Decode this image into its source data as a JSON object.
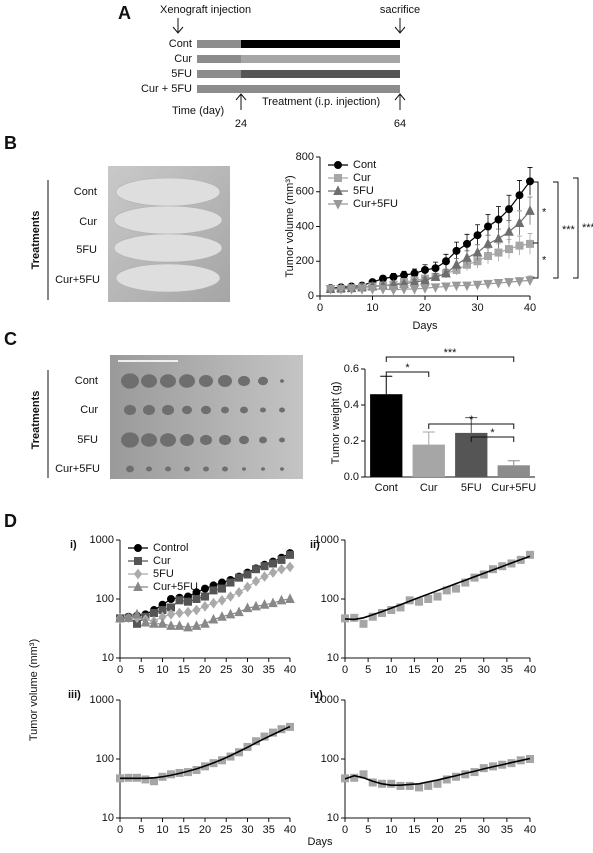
{
  "panel_labels": [
    "A",
    "B",
    "C",
    "D"
  ],
  "timeline": {
    "start_event": "Xenograft injection",
    "end_event": "sacrifice",
    "pre_color": "#8c8c8c",
    "rows": [
      {
        "label": "Cont",
        "color": "#000000"
      },
      {
        "label": "Cur",
        "color": "#a6a6a6"
      },
      {
        "label": "5FU",
        "color": "#555555"
      },
      {
        "label": "Cur + 5FU",
        "color": "#8c8c8c"
      }
    ],
    "time_label": "Time (day)",
    "treatment_label": "Treatment (i.p. injection)",
    "start_day": 24,
    "end_day": 64
  },
  "photos": [
    {
      "heading": "Treatments",
      "rows": [
        "Cont",
        "Cur",
        "5FU",
        "Cur+5FU"
      ]
    },
    {
      "heading": "Treatments",
      "rows": [
        "Cont",
        "Cur",
        "5FU",
        "Cur+5FU"
      ]
    }
  ],
  "panel_d": {
    "ylabel": "Tumor volume (mm³)",
    "xlabel": "Days"
  },
  "chart_data": [
    {
      "type": "line",
      "x": [
        2,
        4,
        6,
        8,
        10,
        12,
        14,
        16,
        18,
        20,
        22,
        24,
        26,
        28,
        30,
        32,
        34,
        36,
        38,
        40
      ],
      "series": [
        {
          "name": "Cont",
          "color": "#000000",
          "marker": "circle",
          "values": [
            45,
            50,
            55,
            60,
            80,
            100,
            110,
            120,
            130,
            150,
            160,
            200,
            260,
            300,
            350,
            400,
            440,
            500,
            580,
            660
          ],
          "errors": [
            5,
            5,
            6,
            8,
            10,
            15,
            20,
            22,
            25,
            30,
            35,
            40,
            50,
            55,
            60,
            70,
            75,
            80,
            85,
            80
          ]
        },
        {
          "name": "Cur",
          "color": "#a6a6a6",
          "marker": "square",
          "values": [
            40,
            40,
            45,
            50,
            55,
            60,
            65,
            80,
            90,
            100,
            110,
            130,
            150,
            180,
            200,
            230,
            250,
            270,
            290,
            300
          ],
          "errors": [
            5,
            5,
            5,
            6,
            8,
            10,
            10,
            12,
            15,
            18,
            20,
            25,
            30,
            35,
            40,
            45,
            50,
            55,
            55,
            60
          ]
        },
        {
          "name": "5FU",
          "color": "#6e6e6e",
          "marker": "triangle",
          "values": [
            40,
            45,
            45,
            50,
            55,
            60,
            65,
            70,
            80,
            90,
            110,
            130,
            180,
            220,
            250,
            300,
            330,
            370,
            420,
            490
          ],
          "errors": [
            5,
            5,
            5,
            6,
            8,
            10,
            10,
            12,
            15,
            18,
            20,
            25,
            35,
            40,
            45,
            50,
            55,
            65,
            70,
            80
          ]
        },
        {
          "name": "Cur+5FU",
          "color": "#999999",
          "marker": "triangle-down",
          "values": [
            40,
            40,
            40,
            40,
            40,
            40,
            35,
            40,
            40,
            45,
            50,
            55,
            60,
            60,
            65,
            70,
            75,
            80,
            85,
            90
          ],
          "errors": [
            4,
            4,
            4,
            4,
            5,
            5,
            5,
            6,
            7,
            8,
            10,
            10,
            12,
            12,
            14,
            15,
            18,
            20,
            20,
            25
          ]
        }
      ],
      "xlim": [
        0,
        40
      ],
      "xticks": [
        0,
        10,
        20,
        30,
        40
      ],
      "ylim": [
        0,
        800
      ],
      "yticks": [
        0,
        200,
        400,
        600,
        800
      ],
      "xlabel": "Days",
      "ylabel": "Tumor volume (mm³)",
      "legend": "upper left",
      "annotations": [
        "*",
        "*",
        "***",
        "***"
      ]
    },
    {
      "type": "bar",
      "categories": [
        "Cont",
        "Cur",
        "5FU",
        "Cur+5FU"
      ],
      "values": [
        0.46,
        0.18,
        0.245,
        0.065
      ],
      "errors": [
        0.1,
        0.07,
        0.085,
        0.025
      ],
      "colors": [
        "#000000",
        "#a6a6a6",
        "#555555",
        "#8c8c8c"
      ],
      "ylim": [
        0,
        0.6
      ],
      "yticks": [
        {
          "value": 0,
          "label": "0.0"
        },
        0.2,
        0.4,
        0.6
      ],
      "ylabel": "Tumor weight (g)",
      "annotations": [
        "*",
        "***",
        "*",
        "*"
      ]
    },
    {
      "type": "line",
      "panel": "i)",
      "log_y": true,
      "x": [
        0,
        2,
        4,
        6,
        8,
        10,
        12,
        14,
        16,
        18,
        20,
        22,
        24,
        26,
        28,
        30,
        32,
        34,
        36,
        38,
        40
      ],
      "series": [
        {
          "name": "Control",
          "color": "#000000",
          "marker": "circle",
          "values": [
            47,
            50,
            52,
            55,
            65,
            80,
            100,
            105,
            110,
            130,
            150,
            170,
            190,
            210,
            240,
            280,
            330,
            380,
            430,
            500,
            600
          ]
        },
        {
          "name": "Cur",
          "color": "#555555",
          "marker": "square",
          "values": [
            47,
            48,
            38,
            50,
            58,
            65,
            72,
            95,
            90,
            100,
            110,
            140,
            150,
            190,
            230,
            260,
            320,
            360,
            400,
            460,
            560
          ]
        },
        {
          "name": "5FU",
          "color": "#aaaaaa",
          "marker": "diamond",
          "values": [
            47,
            48,
            48,
            45,
            42,
            50,
            55,
            58,
            60,
            65,
            75,
            85,
            95,
            110,
            130,
            160,
            200,
            240,
            280,
            320,
            350
          ]
        },
        {
          "name": "Cur+5FU",
          "color": "#888888",
          "marker": "triangle",
          "values": [
            47,
            48,
            55,
            40,
            38,
            38,
            35,
            35,
            33,
            35,
            38,
            45,
            50,
            55,
            60,
            70,
            75,
            80,
            85,
            95,
            100
          ]
        }
      ],
      "xlim": [
        0,
        40
      ],
      "xticks": [
        0,
        5,
        10,
        15,
        20,
        25,
        30,
        35,
        40
      ],
      "ylim": [
        10,
        1000
      ],
      "yticks": [
        10,
        100,
        1000
      ],
      "legend": "upper left"
    },
    {
      "type": "line",
      "panel": "ii)",
      "log_y": true,
      "x": [
        0,
        2,
        4,
        6,
        8,
        10,
        12,
        14,
        16,
        18,
        20,
        22,
        24,
        26,
        28,
        30,
        32,
        34,
        36,
        38,
        40
      ],
      "series": [
        {
          "color": "#a6a6a6",
          "marker": "square",
          "line": false,
          "values": [
            47,
            48,
            38,
            50,
            58,
            65,
            72,
            95,
            90,
            100,
            110,
            140,
            150,
            190,
            230,
            260,
            320,
            360,
            400,
            460,
            560
          ]
        },
        {
          "color": "#000000",
          "marker": "none",
          "values": [
            46,
            45,
            48,
            54,
            61,
            70,
            80,
            92,
            106,
            121,
            139,
            159,
            182,
            208,
            238,
            272,
            311,
            356,
            407,
            465,
            530
          ]
        }
      ],
      "xlim": [
        0,
        40
      ],
      "xticks": [
        0,
        5,
        10,
        15,
        20,
        25,
        30,
        35,
        40
      ],
      "ylim": [
        10,
        1000
      ],
      "yticks": [
        10,
        100,
        1000
      ]
    },
    {
      "type": "line",
      "panel": "iii)",
      "log_y": true,
      "x": [
        0,
        2,
        4,
        6,
        8,
        10,
        12,
        14,
        16,
        18,
        20,
        22,
        24,
        26,
        28,
        30,
        32,
        34,
        36,
        38,
        40
      ],
      "series": [
        {
          "color": "#a6a6a6",
          "marker": "square",
          "line": false,
          "values": [
            47,
            48,
            48,
            45,
            42,
            50,
            55,
            58,
            60,
            65,
            75,
            85,
            95,
            110,
            130,
            160,
            200,
            240,
            280,
            320,
            350
          ]
        },
        {
          "color": "#000000",
          "marker": "none",
          "values": [
            47,
            47,
            47,
            47,
            48,
            50,
            53,
            57,
            62,
            68,
            76,
            86,
            98,
            114,
            134,
            158,
            188,
            222,
            260,
            305,
            355
          ]
        }
      ],
      "xlim": [
        0,
        40
      ],
      "xticks": [
        0,
        5,
        10,
        15,
        20,
        25,
        30,
        35,
        40
      ],
      "ylim": [
        10,
        1000
      ],
      "yticks": [
        10,
        100,
        1000
      ]
    },
    {
      "type": "line",
      "panel": "iv)",
      "log_y": true,
      "x": [
        0,
        2,
        4,
        6,
        8,
        10,
        12,
        14,
        16,
        18,
        20,
        22,
        24,
        26,
        28,
        30,
        32,
        34,
        36,
        38,
        40
      ],
      "series": [
        {
          "color": "#a6a6a6",
          "marker": "square",
          "line": false,
          "values": [
            47,
            48,
            55,
            40,
            38,
            38,
            35,
            35,
            33,
            35,
            38,
            45,
            50,
            55,
            60,
            70,
            75,
            80,
            85,
            95,
            100
          ]
        },
        {
          "color": "#000000",
          "marker": "none",
          "values": [
            46,
            52,
            48,
            42,
            38,
            36,
            36,
            37,
            38,
            41,
            44,
            48,
            52,
            57,
            62,
            68,
            74,
            80,
            87,
            94,
            102
          ]
        }
      ],
      "xlim": [
        0,
        40
      ],
      "xticks": [
        0,
        5,
        10,
        15,
        20,
        25,
        30,
        35,
        40
      ],
      "ylim": [
        10,
        1000
      ],
      "yticks": [
        10,
        100,
        1000
      ]
    }
  ]
}
